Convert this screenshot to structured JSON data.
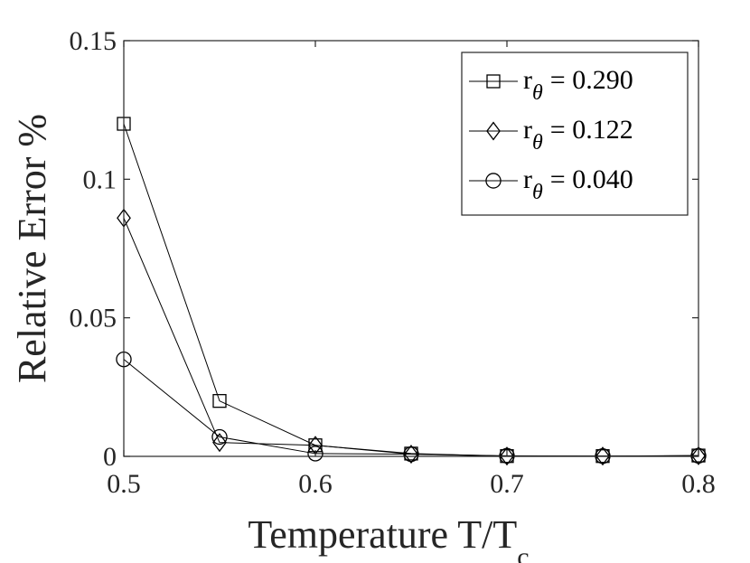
{
  "chart_data": {
    "type": "line",
    "xlabel": "Temperature T/T",
    "xlabel_subscript": "c",
    "ylabel": "Relative Error %",
    "xlim": [
      0.5,
      0.8
    ],
    "ylim": [
      0,
      0.15
    ],
    "x_ticks": [
      0.5,
      0.6,
      0.7,
      0.8
    ],
    "x_tick_labels": [
      "0.5",
      "0.6",
      "0.7",
      "0.8"
    ],
    "y_ticks": [
      0,
      0.05,
      0.1,
      0.15
    ],
    "y_tick_labels": [
      "0",
      "0.05",
      "0.1",
      "0.15"
    ],
    "grid": false,
    "legend_position": "top-right",
    "x": [
      0.5,
      0.55,
      0.6,
      0.65,
      0.7,
      0.75,
      0.8
    ],
    "series": [
      {
        "name": "= 0.290",
        "name_prefix": "r",
        "name_subscript": "θ",
        "marker": "square",
        "values": [
          0.12,
          0.02,
          0.004,
          0.001,
          0.0001,
          0.0001,
          0.0003
        ]
      },
      {
        "name": "= 0.122",
        "name_prefix": "r",
        "name_subscript": "θ",
        "marker": "diamond",
        "values": [
          0.086,
          0.005,
          0.004,
          0.0008,
          0.0001,
          0.0001,
          0.0002
        ]
      },
      {
        "name": "= 0.040",
        "name_prefix": "r",
        "name_subscript": "θ",
        "marker": "circle",
        "values": [
          0.035,
          0.007,
          0.001,
          0.0008,
          0.0002,
          0.0001,
          0.0002
        ]
      }
    ],
    "line_color": "#000000",
    "axis_color": "#262626"
  }
}
